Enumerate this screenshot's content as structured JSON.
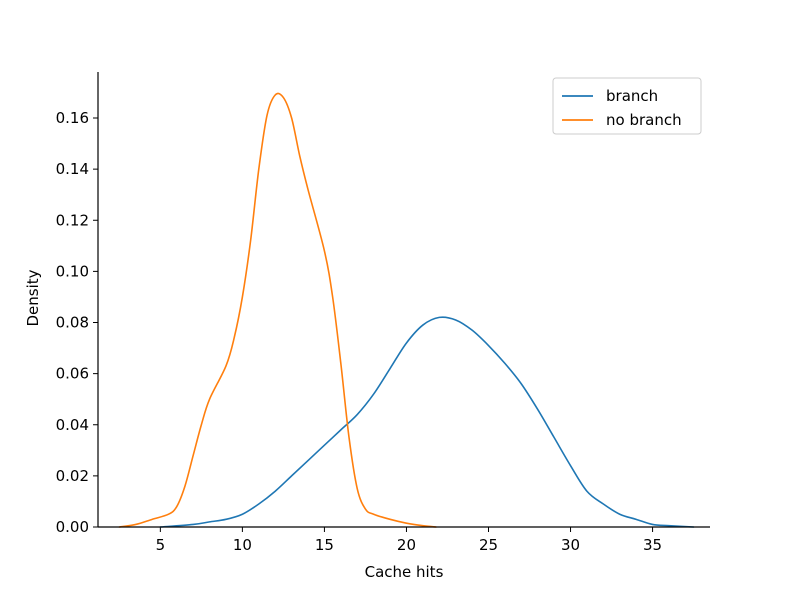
{
  "chart_data": {
    "type": "line",
    "title": "",
    "xlabel": "Cache hits",
    "ylabel": "Density",
    "xlim": [
      1.2,
      38.5
    ],
    "ylim": [
      0,
      0.178
    ],
    "xticks": [
      5,
      10,
      15,
      20,
      25,
      30,
      35
    ],
    "xtick_labels": [
      "5",
      "10",
      "15",
      "20",
      "25",
      "30",
      "35"
    ],
    "yticks": [
      0.0,
      0.02,
      0.04,
      0.06,
      0.08,
      0.1,
      0.12,
      0.14,
      0.16
    ],
    "ytick_labels": [
      "0.00",
      "0.02",
      "0.04",
      "0.06",
      "0.08",
      "0.10",
      "0.12",
      "0.14",
      "0.16"
    ],
    "grid": false,
    "legend_position": "top-right",
    "series": [
      {
        "name": "branch",
        "color": "#1f77b4",
        "x": [
          5.0,
          7.0,
          8.0,
          9.0,
          10.0,
          11.0,
          12.0,
          13.0,
          14.0,
          15.0,
          16.0,
          17.0,
          18.0,
          19.0,
          20.0,
          21.0,
          22.0,
          23.0,
          24.0,
          25.0,
          26.0,
          27.0,
          28.0,
          29.0,
          30.0,
          31.0,
          32.0,
          33.0,
          34.0,
          35.0,
          36.0,
          37.5
        ],
        "y": [
          0.0,
          0.001,
          0.002,
          0.003,
          0.005,
          0.009,
          0.014,
          0.02,
          0.026,
          0.032,
          0.038,
          0.044,
          0.052,
          0.062,
          0.072,
          0.079,
          0.082,
          0.081,
          0.077,
          0.071,
          0.064,
          0.056,
          0.046,
          0.035,
          0.024,
          0.014,
          0.009,
          0.005,
          0.003,
          0.001,
          0.0005,
          0.0
        ]
      },
      {
        "name": "no branch",
        "color": "#ff7f0e",
        "x": [
          2.5,
          3.5,
          4.5,
          5.5,
          6.0,
          6.5,
          7.0,
          7.5,
          8.0,
          9.0,
          9.5,
          10.0,
          10.5,
          11.0,
          11.5,
          12.0,
          12.5,
          13.0,
          13.5,
          14.0,
          15.0,
          15.5,
          16.0,
          16.5,
          17.0,
          17.5,
          18.0,
          19.0,
          20.0,
          21.0,
          21.8
        ],
        "y": [
          0.0,
          0.001,
          0.003,
          0.005,
          0.008,
          0.016,
          0.028,
          0.04,
          0.05,
          0.063,
          0.074,
          0.09,
          0.112,
          0.14,
          0.161,
          0.169,
          0.168,
          0.16,
          0.145,
          0.132,
          0.108,
          0.09,
          0.064,
          0.035,
          0.015,
          0.007,
          0.005,
          0.003,
          0.0015,
          0.0005,
          0.0
        ]
      }
    ]
  }
}
